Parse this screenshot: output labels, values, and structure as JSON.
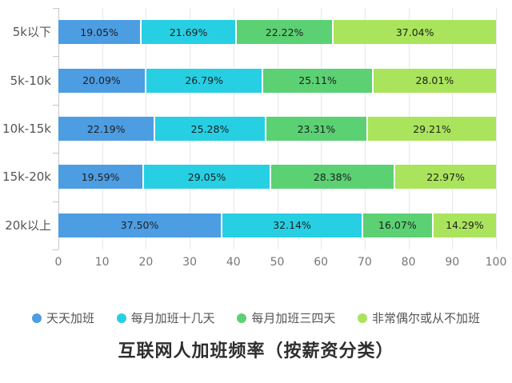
{
  "chart_data": {
    "type": "bar",
    "orientation": "horizontal",
    "stacked": true,
    "title": "互联网人加班频率（按薪资分类）",
    "categories": [
      "5k以下",
      "5k-10k",
      "10k-15k",
      "15k-20k",
      "20k以上"
    ],
    "series": [
      {
        "name": "天天加班",
        "color": "#4D9DE2",
        "values": [
          19.05,
          20.09,
          22.19,
          19.59,
          37.5
        ],
        "labels": [
          "19.05%",
          "20.09%",
          "22.19%",
          "19.59%",
          "37.50%"
        ]
      },
      {
        "name": "每月加班十几天",
        "color": "#27CFE3",
        "values": [
          21.69,
          26.79,
          25.28,
          29.05,
          32.14
        ],
        "labels": [
          "21.69%",
          "26.79%",
          "25.28%",
          "29.05%",
          "32.14%"
        ]
      },
      {
        "name": "每月加班三四天",
        "color": "#5BD173",
        "values": [
          22.22,
          25.11,
          23.31,
          28.38,
          16.07
        ],
        "labels": [
          "22.22%",
          "25.11%",
          "23.31%",
          "28.38%",
          "16.07%"
        ]
      },
      {
        "name": "非常偶尔或从不加班",
        "color": "#AAE45C",
        "values": [
          37.04,
          28.01,
          29.21,
          22.97,
          14.29
        ],
        "labels": [
          "37.04%",
          "28.01%",
          "29.21%",
          "22.97%",
          "14.29%"
        ]
      }
    ],
    "xlim": [
      0,
      100
    ],
    "x_ticks": [
      0,
      10,
      20,
      30,
      40,
      50,
      60,
      70,
      80,
      90,
      100
    ],
    "x_tick_labels": [
      "0",
      "10",
      "20",
      "30",
      "40",
      "50",
      "60",
      "70",
      "80",
      "90",
      "100"
    ],
    "grid": true,
    "legend_position": "bottom"
  }
}
